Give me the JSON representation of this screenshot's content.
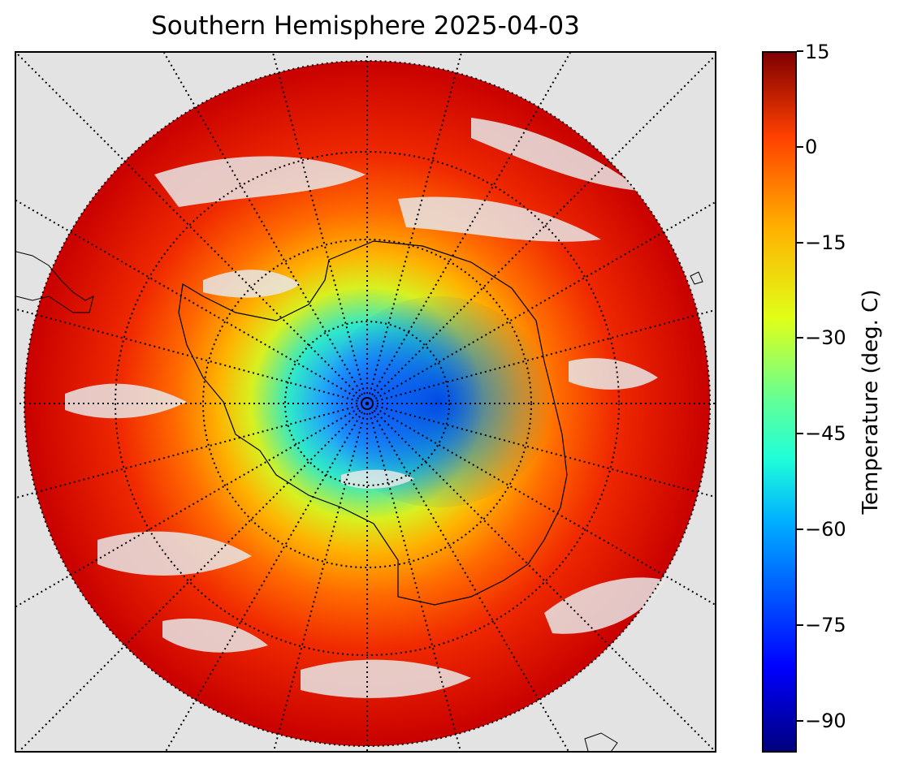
{
  "title": "Southern Hemisphere 2025-04-03",
  "colorbar": {
    "label": "Temperature (deg. C)",
    "ticks": [
      "15",
      "0",
      "−15",
      "−30",
      "−45",
      "−60",
      "−75",
      "−90"
    ],
    "range": [
      -95,
      15
    ],
    "colormap": "jet"
  },
  "map": {
    "projection": "south polar stereographic",
    "graticule_style": "dotted",
    "background_color": "#e3e3e3"
  }
}
